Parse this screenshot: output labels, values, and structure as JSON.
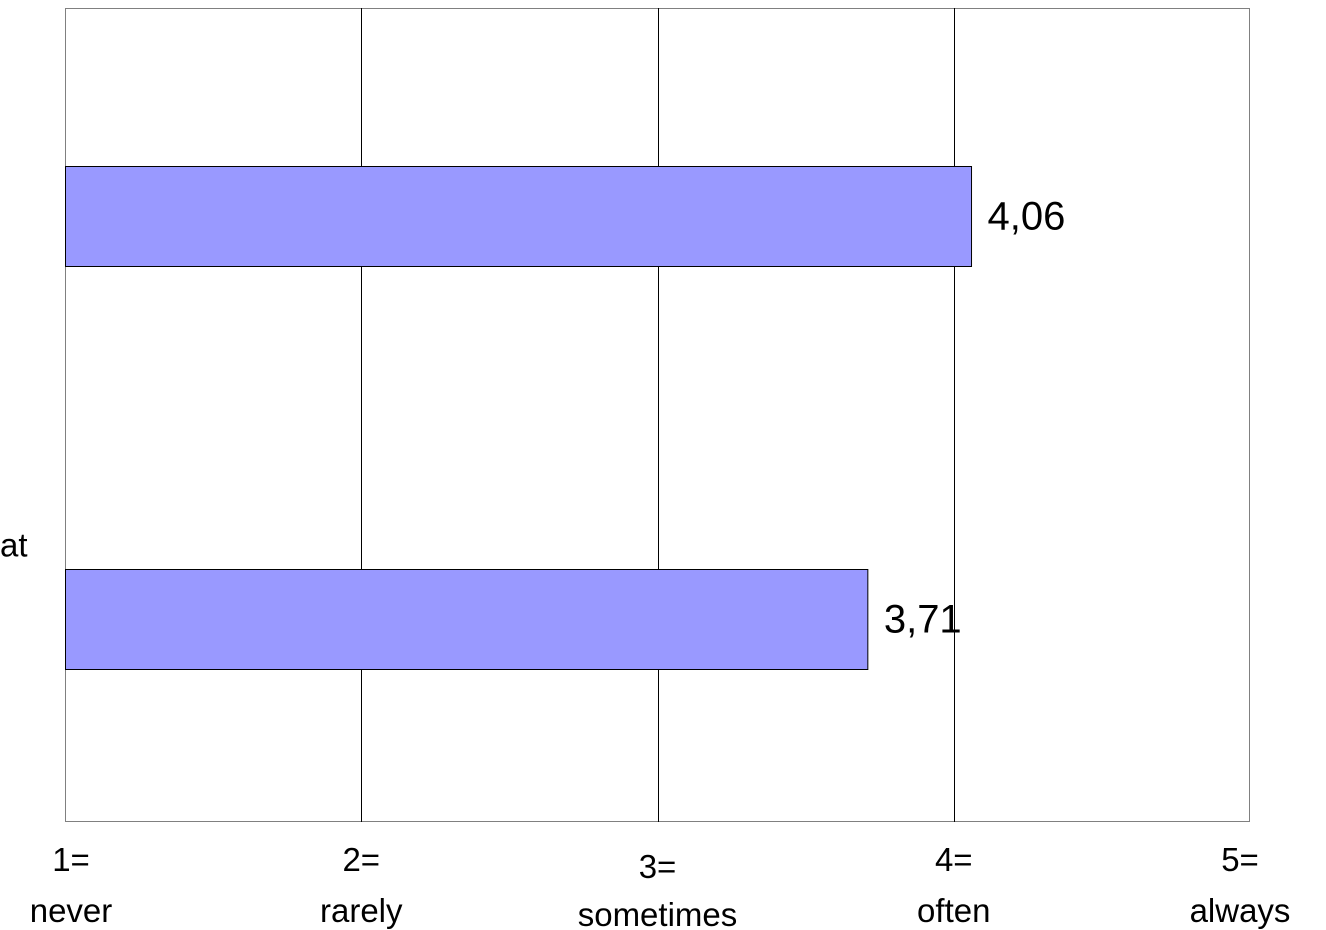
{
  "chart_data": {
    "type": "bar",
    "orientation": "horizontal",
    "categories": [
      "",
      "at"
    ],
    "values": [
      4.06,
      3.71
    ],
    "value_labels": [
      "4,06",
      "3,71"
    ],
    "xlim": [
      1,
      5
    ],
    "x_ticks": [
      {
        "value": 1,
        "line1": "1=",
        "line2": "never"
      },
      {
        "value": 2,
        "line1": "2=",
        "line2": "rarely"
      },
      {
        "value": 3,
        "line1": "3=",
        "line2": "sometimes"
      },
      {
        "value": 4,
        "line1": "4=",
        "line2": "often"
      },
      {
        "value": 5,
        "line1": "5=",
        "line2": "always"
      }
    ],
    "grid": "vertical",
    "legend": "none",
    "colors": {
      "bar": "#9999ff",
      "bar_edge": "#000000",
      "grid": "#000000",
      "frame": "#808080"
    }
  }
}
